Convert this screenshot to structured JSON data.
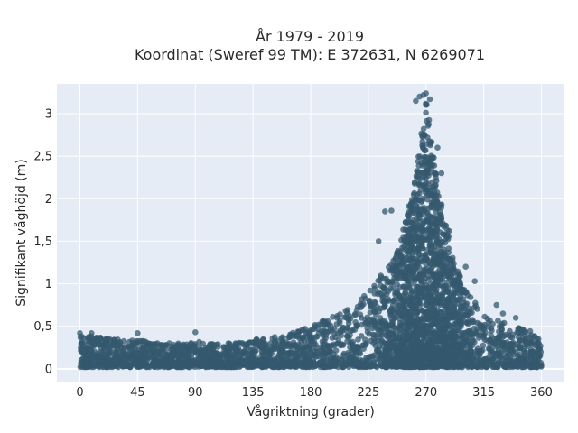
{
  "chart_data": {
    "type": "scatter",
    "title_line1": "År 1979 - 2019",
    "title_line2": "Koordinat (Sweref 99 TM): E 372631, N 6269071",
    "xlabel": "Vågriktning (grader)",
    "ylabel": "Signifikant våghöjd (m)",
    "xlim": [
      -18,
      378
    ],
    "ylim": [
      -0.15,
      3.35
    ],
    "x_ticks": [
      0,
      45,
      90,
      135,
      180,
      225,
      270,
      315,
      360
    ],
    "x_tick_labels": [
      "0",
      "45",
      "90",
      "135",
      "180",
      "225",
      "270",
      "315",
      "360"
    ],
    "y_ticks": [
      0,
      0.5,
      1,
      1.5,
      2,
      2.5,
      3
    ],
    "y_tick_labels": [
      "0",
      "0,5",
      "1",
      "1,5",
      "2",
      "2,5",
      "3"
    ],
    "grid": true,
    "marker_color": "#34586e",
    "plot_background": "#e5ecf6",
    "envelope": {
      "direction": [
        0,
        10,
        20,
        30,
        45,
        60,
        75,
        90,
        105,
        120,
        135,
        150,
        165,
        180,
        195,
        205,
        215,
        225,
        235,
        245,
        250,
        255,
        260,
        265,
        268,
        270,
        272,
        275,
        280,
        285,
        290,
        295,
        300,
        310,
        320,
        330,
        340,
        350,
        360
      ],
      "max_height": [
        0.4,
        0.38,
        0.36,
        0.35,
        0.34,
        0.3,
        0.3,
        0.32,
        0.3,
        0.32,
        0.34,
        0.38,
        0.42,
        0.5,
        0.6,
        0.7,
        0.8,
        0.95,
        1.1,
        1.3,
        1.5,
        1.85,
        2.1,
        2.6,
        3.0,
        3.2,
        3.0,
        2.6,
        2.1,
        1.75,
        1.4,
        1.15,
        0.95,
        0.75,
        0.6,
        0.55,
        0.5,
        0.45,
        0.4
      ],
      "min_height": 0.02
    },
    "outliers": [
      {
        "x": 0,
        "y": 0.42
      },
      {
        "x": 9,
        "y": 0.42
      },
      {
        "x": 45,
        "y": 0.42
      },
      {
        "x": 90,
        "y": 0.43
      },
      {
        "x": 233,
        "y": 1.5
      },
      {
        "x": 238,
        "y": 1.85
      },
      {
        "x": 243,
        "y": 1.86
      },
      {
        "x": 262,
        "y": 3.15
      },
      {
        "x": 265,
        "y": 3.2
      },
      {
        "x": 268,
        "y": 3.22
      },
      {
        "x": 270,
        "y": 3.24
      },
      {
        "x": 273,
        "y": 3.17
      },
      {
        "x": 279,
        "y": 2.6
      },
      {
        "x": 282,
        "y": 2.3
      },
      {
        "x": 288,
        "y": 1.62
      },
      {
        "x": 301,
        "y": 1.2
      },
      {
        "x": 308,
        "y": 1.03
      },
      {
        "x": 325,
        "y": 0.75
      },
      {
        "x": 330,
        "y": 0.65
      },
      {
        "x": 340,
        "y": 0.6
      }
    ]
  }
}
